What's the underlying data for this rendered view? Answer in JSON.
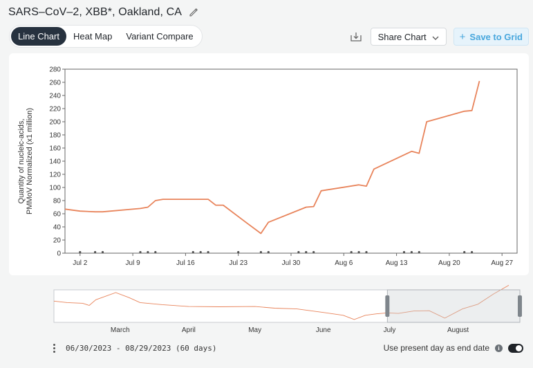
{
  "header": {
    "title": "SARS–CoV–2, XBB*, Oakland, CA"
  },
  "tabs": [
    {
      "label": "Line Chart",
      "active": true
    },
    {
      "label": "Heat Map",
      "active": false
    },
    {
      "label": "Variant Compare",
      "active": false
    }
  ],
  "toolbar": {
    "share_label": "Share Chart",
    "save_label": "Save to Grid"
  },
  "colors": {
    "line": "#e8835a",
    "active_tab": "#27323f",
    "accent": "#48a7dd"
  },
  "chart_data": {
    "type": "line",
    "ylabel_line1": "Quantity of nucleic-acids,",
    "ylabel_line2": "PMMoV Normalized (x1 million)",
    "ylim": [
      0,
      280
    ],
    "yticks": [
      0,
      20,
      40,
      60,
      80,
      100,
      120,
      140,
      160,
      180,
      200,
      220,
      240,
      260,
      280
    ],
    "xlim": [
      "2023-06-30",
      "2023-08-29"
    ],
    "xticks": [
      {
        "date": "2023-07-02",
        "label": "Jul 2"
      },
      {
        "date": "2023-07-09",
        "label": "Jul 9"
      },
      {
        "date": "2023-07-16",
        "label": "Jul 16"
      },
      {
        "date": "2023-07-23",
        "label": "Jul 23"
      },
      {
        "date": "2023-07-30",
        "label": "Jul 30"
      },
      {
        "date": "2023-08-06",
        "label": "Aug 6"
      },
      {
        "date": "2023-08-13",
        "label": "Aug 13"
      },
      {
        "date": "2023-08-20",
        "label": "Aug 20"
      },
      {
        "date": "2023-08-27",
        "label": "Aug 27"
      }
    ],
    "grid": false,
    "series": [
      {
        "points": [
          [
            "2023-06-30",
            67
          ],
          [
            "2023-07-02",
            64
          ],
          [
            "2023-07-04",
            63
          ],
          [
            "2023-07-05",
            63
          ],
          [
            "2023-07-10",
            68
          ],
          [
            "2023-07-11",
            70
          ],
          [
            "2023-07-12",
            80
          ],
          [
            "2023-07-13",
            82
          ],
          [
            "2023-07-18",
            82
          ],
          [
            "2023-07-19",
            82
          ],
          [
            "2023-07-20",
            73
          ],
          [
            "2023-07-21",
            73
          ],
          [
            "2023-07-24",
            47
          ],
          [
            "2023-07-26",
            30
          ],
          [
            "2023-07-27",
            47
          ],
          [
            "2023-08-01",
            70
          ],
          [
            "2023-08-02",
            71
          ],
          [
            "2023-08-03",
            95
          ],
          [
            "2023-08-08",
            104
          ],
          [
            "2023-08-09",
            102
          ],
          [
            "2023-08-10",
            128
          ],
          [
            "2023-08-15",
            155
          ],
          [
            "2023-08-16",
            152
          ],
          [
            "2023-08-17",
            200
          ],
          [
            "2023-08-22",
            216
          ],
          [
            "2023-08-23",
            217
          ],
          [
            "2023-08-24",
            262
          ]
        ]
      }
    ],
    "sample_dates": [
      "2023-07-02",
      "2023-07-04",
      "2023-07-05",
      "2023-07-10",
      "2023-07-11",
      "2023-07-12",
      "2023-07-17",
      "2023-07-18",
      "2023-07-19",
      "2023-07-23",
      "2023-07-26",
      "2023-07-27",
      "2023-07-31",
      "2023-08-01",
      "2023-08-02",
      "2023-08-07",
      "2023-08-08",
      "2023-08-09",
      "2023-08-14",
      "2023-08-15",
      "2023-08-16",
      "2023-08-22",
      "2023-08-23"
    ]
  },
  "overview": {
    "month_labels": [
      {
        "date": "2023-03-01",
        "label": "March"
      },
      {
        "date": "2023-04-01",
        "label": "April"
      },
      {
        "date": "2023-05-01",
        "label": "May"
      },
      {
        "date": "2023-06-01",
        "label": "June"
      },
      {
        "date": "2023-07-01",
        "label": "July"
      },
      {
        "date": "2023-08-01",
        "label": "August"
      }
    ],
    "range": [
      "2023-01-30",
      "2023-08-29"
    ],
    "selected": [
      "2023-06-30",
      "2023-08-29"
    ],
    "series": [
      [
        "2023-01-30",
        150
      ],
      [
        "2023-02-05",
        140
      ],
      [
        "2023-02-12",
        135
      ],
      [
        "2023-02-15",
        120
      ],
      [
        "2023-02-18",
        160
      ],
      [
        "2023-02-27",
        210
      ],
      [
        "2023-03-05",
        175
      ],
      [
        "2023-03-10",
        140
      ],
      [
        "2023-03-20",
        125
      ],
      [
        "2023-04-01",
        112
      ],
      [
        "2023-04-15",
        110
      ],
      [
        "2023-05-01",
        112
      ],
      [
        "2023-05-10",
        100
      ],
      [
        "2023-05-20",
        95
      ],
      [
        "2023-06-01",
        70
      ],
      [
        "2023-06-10",
        50
      ],
      [
        "2023-06-15",
        20
      ],
      [
        "2023-06-20",
        50
      ],
      [
        "2023-06-25",
        60
      ],
      [
        "2023-06-30",
        67
      ],
      [
        "2023-07-05",
        63
      ],
      [
        "2023-07-12",
        80
      ],
      [
        "2023-07-19",
        82
      ],
      [
        "2023-07-26",
        30
      ],
      [
        "2023-08-03",
        95
      ],
      [
        "2023-08-10",
        128
      ],
      [
        "2023-08-17",
        200
      ],
      [
        "2023-08-24",
        262
      ]
    ]
  },
  "footer": {
    "date_range": "06/30/2023 - 08/29/2023 (60 days)",
    "present_day_label": "Use present day as end date",
    "present_day_enabled": true
  }
}
